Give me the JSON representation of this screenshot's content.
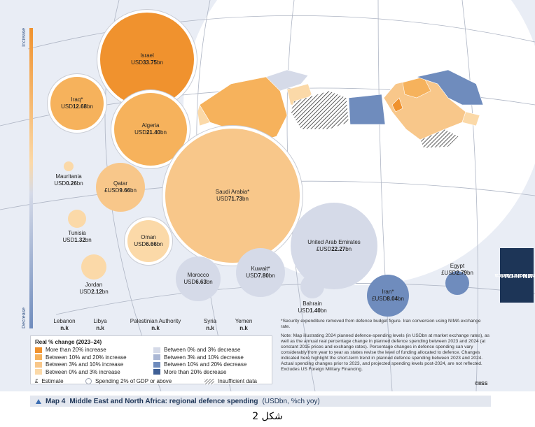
{
  "axis": {
    "increase": "Increase",
    "decrease": "Decrease"
  },
  "bubbles": [
    {
      "key": "israel",
      "name": "Israel",
      "prefix": "USD",
      "value": "33.75",
      "unit": "bn",
      "estimate": false,
      "color": "#f0922e"
    },
    {
      "key": "iraq",
      "name": "Iraq*",
      "prefix": "USD",
      "value": "12.68",
      "unit": "bn",
      "estimate": false,
      "color": "#f6b25c"
    },
    {
      "key": "algeria",
      "name": "Algeria",
      "prefix": "USD",
      "value": "21.40",
      "unit": "bn",
      "estimate": false,
      "color": "#f6b25c"
    },
    {
      "key": "mauritania",
      "name": "Mauritania",
      "prefix": "USD",
      "value": "0.26",
      "unit": "bn",
      "estimate": false,
      "color": "#fbd9a8"
    },
    {
      "key": "qatar",
      "name": "Qatar",
      "prefix": "£USD",
      "value": "9.66",
      "unit": "bn",
      "estimate": true,
      "color": "#f8c78a"
    },
    {
      "key": "saudi",
      "name": "Saudi Arabia*",
      "prefix": "USD",
      "value": "71.73",
      "unit": "bn",
      "estimate": false,
      "color": "#f8c78a"
    },
    {
      "key": "tunisia",
      "name": "Tunisia",
      "prefix": "USD",
      "value": "1.32",
      "unit": "bn",
      "estimate": false,
      "color": "#fbd9a8"
    },
    {
      "key": "oman",
      "name": "Oman",
      "prefix": "USD",
      "value": "6.66",
      "unit": "bn",
      "estimate": false,
      "color": "#fbd9a8"
    },
    {
      "key": "uae",
      "name": "United Arab Emirates",
      "prefix": "£USD",
      "value": "22.27",
      "unit": "bn",
      "estimate": true,
      "color": "#d5dae8"
    },
    {
      "key": "jordan",
      "name": "Jordan",
      "prefix": "USD",
      "value": "2.12",
      "unit": "bn",
      "estimate": false,
      "color": "#fbd9a8"
    },
    {
      "key": "morocco",
      "name": "Morocco",
      "prefix": "USD",
      "value": "6.63",
      "unit": "bn",
      "estimate": false,
      "color": "#d5dae8"
    },
    {
      "key": "kuwait",
      "name": "Kuwait*",
      "prefix": "USD",
      "value": "7.80",
      "unit": "bn",
      "estimate": false,
      "color": "#d5dae8"
    },
    {
      "key": "bahrain",
      "name": "Bahrain",
      "prefix": "USD",
      "value": "1.40",
      "unit": "bn",
      "estimate": false,
      "color": "#d5dae8"
    },
    {
      "key": "iran",
      "name": "Iran*",
      "prefix": "£USD",
      "value": "8.04",
      "unit": "bn",
      "estimate": true,
      "color": "#6f8cbd"
    },
    {
      "key": "egypt",
      "name": "Egypt",
      "prefix": "£USD",
      "value": "2.79",
      "unit": "bn",
      "estimate": true,
      "color": "#6f8cbd"
    }
  ],
  "no_data": [
    {
      "name": "Lebanon",
      "value": "n.k"
    },
    {
      "name": "Libya",
      "value": "n.k"
    },
    {
      "name": "Palestinian Authority",
      "value": "n.k"
    },
    {
      "name": "Syria",
      "value": "n.k"
    },
    {
      "name": "Yemen",
      "value": "n.k"
    }
  ],
  "legend": {
    "title": "Real % change (2023–24)",
    "items": [
      {
        "label": "More than 20% increase",
        "color": "#f0922e"
      },
      {
        "label": "Between 10% and 20% increase",
        "color": "#f6b25c"
      },
      {
        "label": "Between 3% and 10% increase",
        "color": "#f8c78a"
      },
      {
        "label": "Between 0% and 3% increase",
        "color": "#fbd9a8"
      },
      {
        "label": "Between 0% and 3% decrease",
        "color": "#d5dae8"
      },
      {
        "label": "Between 3% and 10% decrease",
        "color": "#aab7d4"
      },
      {
        "label": "Between 10% and 20% decrease",
        "color": "#6f8cbd"
      },
      {
        "label": "More than 20% decrease",
        "color": "#3f5f95"
      }
    ],
    "estimate_symbol": "£",
    "estimate_label": "Estimate",
    "gdp_label": "Spending 2% of GDP or above",
    "insufficient_label": "Insufficient data"
  },
  "notes": {
    "security": "*Security expenditure removed from defence budget figure. Iran conversion using NIMA exchange rate.",
    "main": "Note: Map illustrating 2024 planned defence-spending levels (in USDbn at market exchange rates), as well as the annual real percentage change in planned defence spending between 2023 and 2024 (at constant 2015 prices and exchange rates). Percentage changes in defence spending can vary considerably from year to year as states revise the level of funding allocated to defence. Changes indicated here highlight the short-term trend in planned defence spending between 2023 and 2024. Actual spending changes prior to 2023, and projected spending levels post-2024, are not reflected. Excludes US Foreign Military Financing.",
    "copyright": "©IISS"
  },
  "side_tab": {
    "line1": "Middle East",
    "line2": "and North Africa"
  },
  "caption": {
    "prefix": "Map 4",
    "bold": "Middle East and North Africa: regional defence spending",
    "suffix": "(USDbn, %ch yoy)"
  },
  "footer": "شكل 2"
}
